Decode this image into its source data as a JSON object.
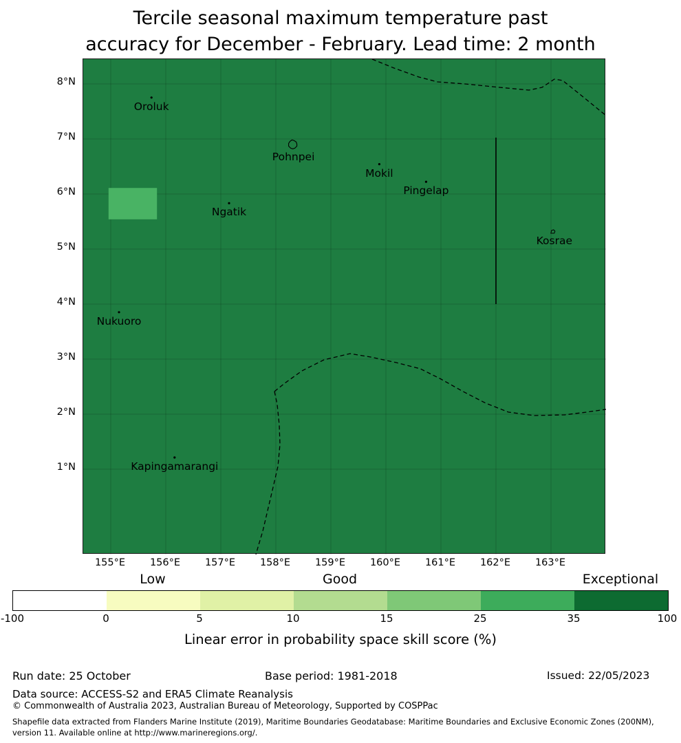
{
  "title": {
    "line1": "Tercile seasonal maximum temperature past",
    "line2": "accuracy for December - February. Lead time: 2 month"
  },
  "chart_data": {
    "type": "heatmap",
    "subtype": "geographic skill-score map",
    "title": "Tercile seasonal maximum temperature past accuracy for December - February. Lead time: 2 month",
    "extent": {
      "lon_min": 154.5,
      "lon_max": 164.0,
      "lat_min": -0.55,
      "lat_max": 8.45
    },
    "x_tick_labels": [
      "155°E",
      "156°E",
      "157°E",
      "158°E",
      "159°E",
      "160°E",
      "161°E",
      "162°E",
      "163°E"
    ],
    "x_tick_lons": [
      155,
      156,
      157,
      158,
      159,
      160,
      161,
      162,
      163
    ],
    "y_tick_labels": [
      "8°N",
      "7°N",
      "6°N",
      "5°N",
      "4°N",
      "3°N",
      "2°N",
      "1°N"
    ],
    "y_tick_lats": [
      8,
      7,
      6,
      5,
      4,
      3,
      2,
      1
    ],
    "map_fill_color": "#1e7d41",
    "map_fill_skill_bin": "35-100",
    "grid": true,
    "highlight_cell": {
      "lon_range": [
        154.96,
        155.84
      ],
      "lat_range": [
        5.54,
        6.11
      ],
      "color": "#49b364",
      "skill_bin": "25-35"
    },
    "places": [
      {
        "name": "Oroluk",
        "lon": 155.74,
        "lat": 7.59,
        "marker": "dot"
      },
      {
        "name": "Pohnpei",
        "lon": 158.32,
        "lat": 6.67,
        "marker": "outline-large"
      },
      {
        "name": "Mokil",
        "lon": 159.88,
        "lat": 6.38,
        "marker": "dot"
      },
      {
        "name": "Pingelap",
        "lon": 160.73,
        "lat": 6.06,
        "marker": "dot"
      },
      {
        "name": "Ngatik",
        "lon": 157.15,
        "lat": 5.67,
        "marker": "dot"
      },
      {
        "name": "Kosrae",
        "lon": 163.06,
        "lat": 5.15,
        "marker": "outline-small"
      },
      {
        "name": "Nukuoro",
        "lon": 155.15,
        "lat": 3.69,
        "marker": "dot"
      },
      {
        "name": "Kapingamarangi",
        "lon": 156.16,
        "lat": 1.05,
        "marker": "dot"
      }
    ],
    "boundaries": {
      "units": "map_px",
      "dashed": [
        [
          [
            420,
            0
          ],
          [
            452,
            13
          ],
          [
            488,
            26
          ],
          [
            515,
            33
          ],
          [
            555,
            36
          ],
          [
            605,
            41
          ],
          [
            648,
            45
          ],
          [
            667,
            41
          ],
          [
            685,
            29
          ],
          [
            697,
            31
          ],
          [
            712,
            43
          ],
          [
            733,
            60
          ],
          [
            760,
            82
          ]
        ],
        [
          [
            278,
            483
          ],
          [
            293,
            471
          ],
          [
            318,
            453
          ],
          [
            350,
            437
          ],
          [
            388,
            428
          ],
          [
            418,
            433
          ],
          [
            455,
            441
          ],
          [
            490,
            450
          ],
          [
            520,
            465
          ],
          [
            552,
            483
          ],
          [
            585,
            500
          ],
          [
            618,
            513
          ],
          [
            655,
            518
          ],
          [
            700,
            517
          ],
          [
            732,
            513
          ],
          [
            760,
            509
          ]
        ],
        [
          [
            278,
            483
          ],
          [
            282,
            502
          ],
          [
            285,
            532
          ],
          [
            286,
            560
          ],
          [
            283,
            592
          ],
          [
            277,
            618
          ],
          [
            269,
            652
          ],
          [
            261,
            686
          ],
          [
            255,
            706
          ],
          [
            251,
            720
          ]
        ]
      ],
      "solid": [
        [
          [
            600,
            114
          ],
          [
            600,
            356
          ]
        ]
      ]
    },
    "colorbar": {
      "categories": [
        "Low",
        "Good",
        "Exceptional"
      ],
      "category_bin_index": [
        1,
        3,
        6
      ],
      "tick_labels": [
        "-100",
        "0",
        "5",
        "10",
        "15",
        "25",
        "35",
        "100"
      ],
      "bin_edges": [
        -100,
        0,
        5,
        10,
        15,
        25,
        35,
        100
      ],
      "bin_colors": [
        "#ffffff",
        "#f7fcc0",
        "#e0f1a6",
        "#b3dc90",
        "#7fc877",
        "#3dac5b",
        "#0d6b31"
      ],
      "caption": "Linear error in probability space skill score (%)"
    }
  },
  "footer": {
    "run_date": "Run date: 25 October",
    "base_period": "Base period: 1981-2018",
    "issued": "Issued: 22/05/2023",
    "data_source": "Data source: ACCESS-S2 and ERA5 Climate Reanalysis",
    "copyright": "© Commonwealth of Australia 2023, Australian Bureau of Meteorology, Supported by COSPPac",
    "shapefile_note": "Shapefile data extracted from Flanders Marine Institute (2019), Maritime Boundaries Geodatabase: Maritime Boundaries and Exclusive Economic Zones (200NM), version 11. Available online at http://www.marineregions.org/."
  }
}
